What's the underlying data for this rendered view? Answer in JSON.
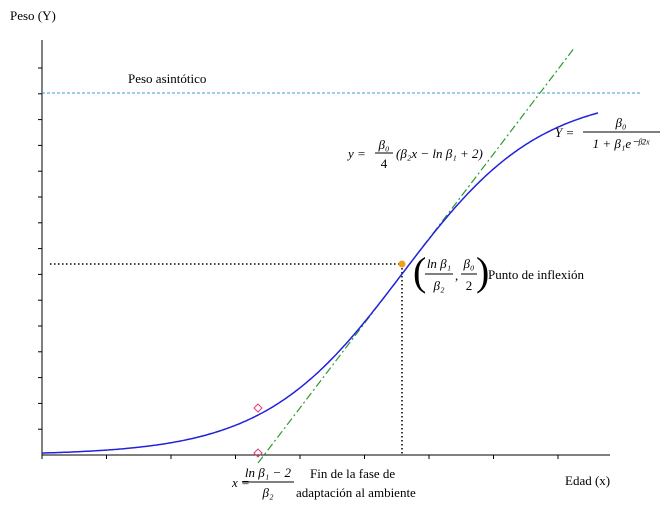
{
  "axis_labels": {
    "y": "Peso (Y)",
    "x": "Edad (x)"
  },
  "annotations": {
    "asymptote": "Peso asintótico",
    "inflection": "Punto de inflexión",
    "adaptation_line1": "Fin de la fase de",
    "adaptation_line2": "adaptación al ambiente"
  },
  "formulas": {
    "tangent": {
      "lhs": "y =",
      "num": "β₀",
      "den": "4",
      "rest": "(β₂x − ln β₁ + 2)"
    },
    "curve": {
      "lhs": "Y =",
      "num": "β₀",
      "den": "1 + β₁e⁻ᵝ²ˣ"
    },
    "point": {
      "num1": "ln β₁",
      "den1": "β₂",
      "sep": ",",
      "num2": "β₀",
      "den2": "2"
    },
    "x_end": {
      "lhs": "x =",
      "num": "ln β₁ − 2",
      "den": "β₂"
    }
  }
}
